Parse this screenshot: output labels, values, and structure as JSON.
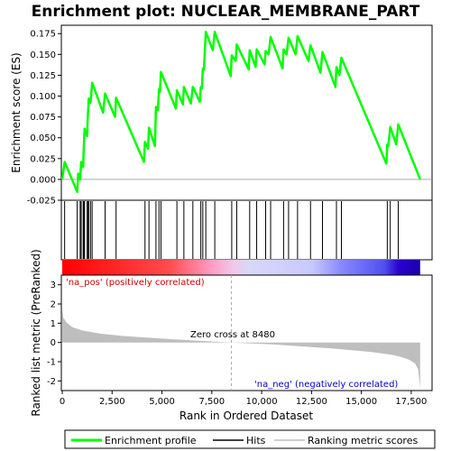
{
  "chart_data": {
    "type": "line",
    "title": "Enrichment plot: NUCLEAR_MEMBRANE_PART",
    "top_panel": {
      "ylabel": "Enrichment score (ES)",
      "ylim": [
        -0.025,
        0.185
      ],
      "yticks": [
        -0.025,
        0.0,
        0.025,
        0.05,
        0.075,
        0.1,
        0.125,
        0.15,
        0.175
      ],
      "ytick_labels": [
        "-0.025",
        "0.000",
        "0.025",
        "0.050",
        "0.075",
        "0.100",
        "0.125",
        "0.150",
        "0.175"
      ],
      "series_name": "Enrichment profile",
      "series_color": "#00ff00",
      "es_curve": [
        [
          0,
          0.0
        ],
        [
          120,
          0.021
        ],
        [
          750,
          -0.015
        ],
        [
          800,
          0.007
        ],
        [
          900,
          0.0
        ],
        [
          950,
          0.021
        ],
        [
          1050,
          0.015
        ],
        [
          1080,
          0.038
        ],
        [
          1120,
          0.061
        ],
        [
          1250,
          0.052
        ],
        [
          1280,
          0.075
        ],
        [
          1330,
          0.097
        ],
        [
          1420,
          0.092
        ],
        [
          1500,
          0.116
        ],
        [
          2050,
          0.08
        ],
        [
          2150,
          0.103
        ],
        [
          2650,
          0.075
        ],
        [
          2700,
          0.098
        ],
        [
          4100,
          0.021
        ],
        [
          4150,
          0.045
        ],
        [
          4300,
          0.037
        ],
        [
          4350,
          0.062
        ],
        [
          4650,
          0.04
        ],
        [
          4700,
          0.087
        ],
        [
          4800,
          0.083
        ],
        [
          4850,
          0.108
        ],
        [
          4900,
          0.105
        ],
        [
          4950,
          0.129
        ],
        [
          5700,
          0.085
        ],
        [
          5750,
          0.107
        ],
        [
          6050,
          0.09
        ],
        [
          6100,
          0.111
        ],
        [
          6450,
          0.091
        ],
        [
          6550,
          0.111
        ],
        [
          6900,
          0.093
        ],
        [
          6950,
          0.111
        ],
        [
          7000,
          0.109
        ],
        [
          7050,
          0.133
        ],
        [
          7100,
          0.131
        ],
        [
          7200,
          0.177
        ],
        [
          7550,
          0.155
        ],
        [
          7650,
          0.177
        ],
        [
          8450,
          0.124
        ],
        [
          8500,
          0.149
        ],
        [
          8700,
          0.142
        ],
        [
          8750,
          0.162
        ],
        [
          9350,
          0.132
        ],
        [
          9400,
          0.155
        ],
        [
          9700,
          0.135
        ],
        [
          9750,
          0.156
        ],
        [
          10150,
          0.138
        ],
        [
          10200,
          0.154
        ],
        [
          10350,
          0.15
        ],
        [
          10450,
          0.171
        ],
        [
          11050,
          0.133
        ],
        [
          11100,
          0.156
        ],
        [
          11250,
          0.15
        ],
        [
          11350,
          0.17
        ],
        [
          11700,
          0.15
        ],
        [
          11800,
          0.172
        ],
        [
          12350,
          0.142
        ],
        [
          12450,
          0.161
        ],
        [
          12950,
          0.128
        ],
        [
          13050,
          0.153
        ],
        [
          13700,
          0.111
        ],
        [
          13750,
          0.135
        ],
        [
          13900,
          0.125
        ],
        [
          14000,
          0.146
        ],
        [
          16250,
          0.019
        ],
        [
          16300,
          0.042
        ],
        [
          16350,
          0.04
        ],
        [
          16450,
          0.063
        ],
        [
          16750,
          0.042
        ],
        [
          16850,
          0.066
        ],
        [
          17950,
          0.0
        ]
      ]
    },
    "hits": {
      "series_name": "Hits",
      "positions": [
        120,
        750,
        900,
        950,
        1050,
        1080,
        1120,
        1250,
        1280,
        1330,
        1420,
        1500,
        2150,
        2700,
        4150,
        4350,
        4700,
        4850,
        4950,
        5750,
        6100,
        6550,
        6950,
        7050,
        7200,
        7650,
        8500,
        8750,
        9400,
        9750,
        10200,
        10450,
        11100,
        11350,
        11800,
        12450,
        13050,
        13750,
        14000,
        16300,
        16450,
        16850
      ]
    },
    "ranked_metric": {
      "series_name": "Ranking metric scores",
      "ylabel": "Ranked list metric (PreRanked)",
      "ylim": [
        -2.5,
        3.5
      ],
      "yticks": [
        -2,
        -1,
        0,
        1,
        2,
        3
      ],
      "ytick_labels": [
        "-2",
        "-1",
        "0",
        "1",
        "2",
        "3"
      ],
      "profile": [
        [
          0,
          1.75
        ],
        [
          50,
          1.3
        ],
        [
          200,
          1.05
        ],
        [
          500,
          0.8
        ],
        [
          1000,
          0.62
        ],
        [
          2000,
          0.45
        ],
        [
          3000,
          0.34
        ],
        [
          4000,
          0.27
        ],
        [
          5000,
          0.2
        ],
        [
          6000,
          0.14
        ],
        [
          7000,
          0.08
        ],
        [
          8480,
          0.0
        ],
        [
          9500,
          -0.05
        ],
        [
          10500,
          -0.1
        ],
        [
          11500,
          -0.17
        ],
        [
          12500,
          -0.24
        ],
        [
          13500,
          -0.31
        ],
        [
          14500,
          -0.4
        ],
        [
          15500,
          -0.5
        ],
        [
          16000,
          -0.57
        ],
        [
          16500,
          -0.64
        ],
        [
          17000,
          -0.75
        ],
        [
          17400,
          -0.9
        ],
        [
          17700,
          -1.1
        ],
        [
          17850,
          -1.4
        ],
        [
          17950,
          -2.4
        ]
      ],
      "zero_cross_label": "Zero cross at 8480",
      "zero_cross": 8480,
      "pos_label": "'na_pos' (positively correlated)",
      "neg_label": "'na_neg' (negatively correlated)"
    },
    "xlabel": "Rank in Ordered Dataset",
    "xlim": [
      0,
      18500
    ],
    "xticks": [
      0,
      2500,
      5000,
      7500,
      10000,
      12500,
      15000,
      17500
    ],
    "xtick_labels": [
      "0",
      "2,500",
      "5,000",
      "7,500",
      "10,000",
      "12,500",
      "15,000",
      "17,500"
    ],
    "n_genes": 17950,
    "legend": {
      "placement": "bottom",
      "entries": [
        "Enrichment profile",
        "Hits",
        "Ranking metric scores"
      ]
    },
    "colors": {
      "profile": "#00ff00",
      "hits": "#000000",
      "metric_fill": "#bebebe",
      "pos_text": "#cc0000",
      "neg_text": "#0000cc",
      "zero_line": "#aaaaaa"
    }
  }
}
